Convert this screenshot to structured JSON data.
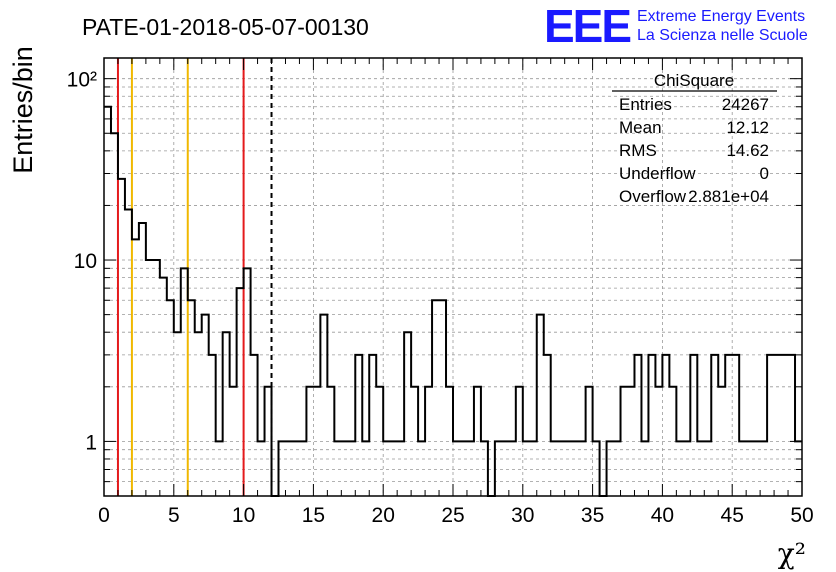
{
  "header": {
    "run_title": "PATE-01-2018-05-07-00130",
    "logo_text": "EEE",
    "logo_line1": "Extreme Energy Events",
    "logo_line2": "La Scienza nelle Scuole"
  },
  "stats_box": {
    "title": "ChiSquare",
    "rows": [
      {
        "label": "Entries",
        "value": "24267"
      },
      {
        "label": "Mean",
        "value": "12.12"
      },
      {
        "label": "RMS",
        "value": "14.62"
      },
      {
        "label": "Underflow",
        "value": "0"
      },
      {
        "label": "Overflow",
        "value": "2.881e+04"
      }
    ]
  },
  "colors": {
    "histogram": "#000000",
    "red_lines": "#e41a1c",
    "yellow_lines": "#f0b800",
    "logo": "#1a1aff",
    "grid": "#999999"
  },
  "chart_data": {
    "type": "histogram",
    "title": "PATE-01-2018-05-07-00130",
    "xlabel": "χ²",
    "ylabel": "Entries/bin",
    "xlim": [
      0,
      50
    ],
    "ylim": [
      0.5,
      130
    ],
    "yscale": "log",
    "grid": true,
    "bin_width": 0.5,
    "x_ticks": [
      0,
      5,
      10,
      15,
      20,
      25,
      30,
      35,
      40,
      45,
      50
    ],
    "x_tick_labels": [
      "0",
      "5",
      "10",
      "15",
      "20",
      "25",
      "30",
      "35",
      "40",
      "45",
      "50"
    ],
    "y_ticks": [
      1,
      10,
      100
    ],
    "y_tick_labels": [
      "1",
      "10",
      "10²"
    ],
    "bin_contents": [
      70,
      50,
      28,
      19,
      13,
      16,
      10,
      10,
      8,
      6,
      4,
      9,
      6,
      4,
      5,
      3,
      1,
      4,
      2,
      7,
      9,
      3,
      1,
      2,
      0,
      1,
      1,
      1,
      1,
      2,
      2,
      5,
      2,
      1,
      1,
      1,
      3,
      1,
      3,
      2,
      1,
      1,
      1,
      4,
      2,
      1,
      2,
      6,
      6,
      2,
      1,
      1,
      1,
      2,
      1,
      0,
      1,
      1,
      1,
      2,
      1,
      1,
      5,
      3,
      1,
      1,
      1,
      1,
      1,
      2,
      1,
      0,
      1,
      1,
      2,
      2,
      3,
      1,
      3,
      2,
      3,
      2,
      1,
      1,
      3,
      1,
      1,
      3,
      2,
      3,
      3,
      1,
      1,
      1,
      1,
      3,
      3,
      3,
      3,
      1
    ],
    "vertical_lines": [
      {
        "x": 1,
        "color": "red",
        "style": "solid"
      },
      {
        "x": 2,
        "color": "yellow",
        "style": "solid"
      },
      {
        "x": 6,
        "color": "yellow",
        "style": "solid"
      },
      {
        "x": 10,
        "color": "red",
        "style": "solid"
      },
      {
        "x": 12,
        "color": "black",
        "style": "dashed"
      }
    ]
  }
}
